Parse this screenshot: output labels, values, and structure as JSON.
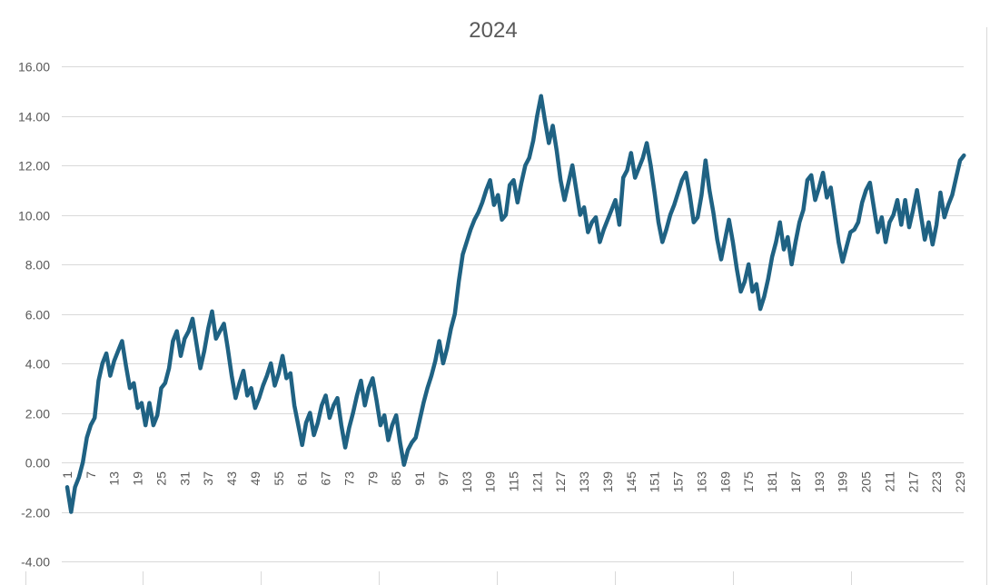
{
  "chart_data": {
    "type": "line",
    "title": "2024",
    "xlabel": "",
    "ylabel": "",
    "ylim": [
      -4,
      16
    ],
    "ytick_step": 2,
    "ytick_labels": [
      "-4.00",
      "-2.00",
      "0.00",
      "2.00",
      "4.00",
      "6.00",
      "8.00",
      "10.00",
      "12.00",
      "14.00",
      "16.00"
    ],
    "x_tick_labels": [
      "1",
      "7",
      "13",
      "19",
      "25",
      "31",
      "37",
      "43",
      "49",
      "55",
      "61",
      "67",
      "73",
      "79",
      "85",
      "91",
      "97",
      "103",
      "109",
      "115",
      "121",
      "127",
      "133",
      "139",
      "145",
      "151",
      "157",
      "163",
      "169",
      "175",
      "181",
      "187",
      "193",
      "199",
      "205",
      "211",
      "217",
      "223",
      "229"
    ],
    "x_tick_values": [
      1,
      7,
      13,
      19,
      25,
      31,
      37,
      43,
      49,
      55,
      61,
      67,
      73,
      79,
      85,
      91,
      97,
      103,
      109,
      115,
      121,
      127,
      133,
      139,
      145,
      151,
      157,
      163,
      169,
      175,
      181,
      187,
      193,
      199,
      205,
      211,
      217,
      223,
      229
    ],
    "x_range": [
      1,
      229
    ],
    "grid": true,
    "legend": "none",
    "series": [
      {
        "color": "#1f6283",
        "points": [
          [
            1,
            -1.0
          ],
          [
            2,
            -2.0
          ],
          [
            3,
            -1.0
          ],
          [
            4,
            -0.6
          ],
          [
            5,
            0.0
          ],
          [
            6,
            1.0
          ],
          [
            7,
            1.5
          ],
          [
            8,
            1.8
          ],
          [
            9,
            3.3
          ],
          [
            10,
            4.0
          ],
          [
            11,
            4.4
          ],
          [
            12,
            3.5
          ],
          [
            13,
            4.1
          ],
          [
            14,
            4.5
          ],
          [
            15,
            4.9
          ],
          [
            16,
            3.9
          ],
          [
            17,
            3.0
          ],
          [
            18,
            3.2
          ],
          [
            19,
            2.2
          ],
          [
            20,
            2.4
          ],
          [
            21,
            1.5
          ],
          [
            22,
            2.4
          ],
          [
            23,
            1.5
          ],
          [
            24,
            1.9
          ],
          [
            25,
            3.0
          ],
          [
            26,
            3.2
          ],
          [
            27,
            3.8
          ],
          [
            28,
            4.9
          ],
          [
            29,
            5.3
          ],
          [
            30,
            4.3
          ],
          [
            31,
            5.0
          ],
          [
            32,
            5.3
          ],
          [
            33,
            5.8
          ],
          [
            34,
            4.8
          ],
          [
            35,
            3.8
          ],
          [
            36,
            4.5
          ],
          [
            37,
            5.4
          ],
          [
            38,
            6.1
          ],
          [
            39,
            5.0
          ],
          [
            40,
            5.3
          ],
          [
            41,
            5.6
          ],
          [
            42,
            4.6
          ],
          [
            43,
            3.5
          ],
          [
            44,
            2.6
          ],
          [
            45,
            3.2
          ],
          [
            46,
            3.7
          ],
          [
            47,
            2.7
          ],
          [
            48,
            3.0
          ],
          [
            49,
            2.2
          ],
          [
            50,
            2.6
          ],
          [
            51,
            3.1
          ],
          [
            52,
            3.5
          ],
          [
            53,
            4.0
          ],
          [
            54,
            3.1
          ],
          [
            55,
            3.6
          ],
          [
            56,
            4.3
          ],
          [
            57,
            3.4
          ],
          [
            58,
            3.6
          ],
          [
            59,
            2.3
          ],
          [
            60,
            1.5
          ],
          [
            61,
            0.7
          ],
          [
            62,
            1.6
          ],
          [
            63,
            2.0
          ],
          [
            64,
            1.1
          ],
          [
            65,
            1.6
          ],
          [
            66,
            2.3
          ],
          [
            67,
            2.7
          ],
          [
            68,
            1.8
          ],
          [
            69,
            2.3
          ],
          [
            70,
            2.6
          ],
          [
            71,
            1.5
          ],
          [
            72,
            0.6
          ],
          [
            73,
            1.4
          ],
          [
            74,
            2.0
          ],
          [
            75,
            2.7
          ],
          [
            76,
            3.3
          ],
          [
            77,
            2.3
          ],
          [
            78,
            3.0
          ],
          [
            79,
            3.4
          ],
          [
            80,
            2.5
          ],
          [
            81,
            1.5
          ],
          [
            82,
            1.9
          ],
          [
            83,
            0.9
          ],
          [
            84,
            1.5
          ],
          [
            85,
            1.9
          ],
          [
            86,
            0.8
          ],
          [
            87,
            -0.1
          ],
          [
            88,
            0.5
          ],
          [
            89,
            0.8
          ],
          [
            90,
            1.0
          ],
          [
            91,
            1.7
          ],
          [
            92,
            2.4
          ],
          [
            93,
            3.0
          ],
          [
            94,
            3.5
          ],
          [
            95,
            4.1
          ],
          [
            96,
            4.9
          ],
          [
            97,
            4.0
          ],
          [
            98,
            4.6
          ],
          [
            99,
            5.4
          ],
          [
            100,
            6.0
          ],
          [
            101,
            7.3
          ],
          [
            102,
            8.4
          ],
          [
            103,
            8.9
          ],
          [
            104,
            9.4
          ],
          [
            105,
            9.8
          ],
          [
            106,
            10.1
          ],
          [
            107,
            10.5
          ],
          [
            108,
            11.0
          ],
          [
            109,
            11.4
          ],
          [
            110,
            10.4
          ],
          [
            111,
            10.8
          ],
          [
            112,
            9.8
          ],
          [
            113,
            10.0
          ],
          [
            114,
            11.2
          ],
          [
            115,
            11.4
          ],
          [
            116,
            10.5
          ],
          [
            117,
            11.3
          ],
          [
            118,
            12.0
          ],
          [
            119,
            12.3
          ],
          [
            120,
            13.0
          ],
          [
            121,
            14.0
          ],
          [
            122,
            14.8
          ],
          [
            123,
            13.8
          ],
          [
            124,
            12.9
          ],
          [
            125,
            13.6
          ],
          [
            126,
            12.6
          ],
          [
            127,
            11.4
          ],
          [
            128,
            10.6
          ],
          [
            129,
            11.3
          ],
          [
            130,
            12.0
          ],
          [
            131,
            11.0
          ],
          [
            132,
            10.0
          ],
          [
            133,
            10.3
          ],
          [
            134,
            9.3
          ],
          [
            135,
            9.7
          ],
          [
            136,
            9.9
          ],
          [
            137,
            8.9
          ],
          [
            138,
            9.4
          ],
          [
            139,
            9.8
          ],
          [
            140,
            10.2
          ],
          [
            141,
            10.6
          ],
          [
            142,
            9.6
          ],
          [
            143,
            11.5
          ],
          [
            144,
            11.8
          ],
          [
            145,
            12.5
          ],
          [
            146,
            11.5
          ],
          [
            147,
            11.9
          ],
          [
            148,
            12.3
          ],
          [
            149,
            12.9
          ],
          [
            150,
            12.0
          ],
          [
            151,
            10.9
          ],
          [
            152,
            9.7
          ],
          [
            153,
            8.9
          ],
          [
            154,
            9.4
          ],
          [
            155,
            10.0
          ],
          [
            156,
            10.4
          ],
          [
            157,
            10.9
          ],
          [
            158,
            11.4
          ],
          [
            159,
            11.7
          ],
          [
            160,
            10.8
          ],
          [
            161,
            9.7
          ],
          [
            162,
            9.9
          ],
          [
            163,
            10.8
          ],
          [
            164,
            12.2
          ],
          [
            165,
            11.0
          ],
          [
            166,
            10.1
          ],
          [
            167,
            9.0
          ],
          [
            168,
            8.2
          ],
          [
            169,
            9.0
          ],
          [
            170,
            9.8
          ],
          [
            171,
            8.9
          ],
          [
            172,
            7.8
          ],
          [
            173,
            6.9
          ],
          [
            174,
            7.3
          ],
          [
            175,
            8.0
          ],
          [
            176,
            6.9
          ],
          [
            177,
            7.2
          ],
          [
            178,
            6.2
          ],
          [
            179,
            6.7
          ],
          [
            180,
            7.4
          ],
          [
            181,
            8.3
          ],
          [
            182,
            8.9
          ],
          [
            183,
            9.7
          ],
          [
            184,
            8.6
          ],
          [
            185,
            9.1
          ],
          [
            186,
            8.0
          ],
          [
            187,
            8.9
          ],
          [
            188,
            9.7
          ],
          [
            189,
            10.2
          ],
          [
            190,
            11.4
          ],
          [
            191,
            11.6
          ],
          [
            192,
            10.6
          ],
          [
            193,
            11.1
          ],
          [
            194,
            11.7
          ],
          [
            195,
            10.7
          ],
          [
            196,
            11.1
          ],
          [
            197,
            10.0
          ],
          [
            198,
            8.9
          ],
          [
            199,
            8.1
          ],
          [
            200,
            8.7
          ],
          [
            201,
            9.3
          ],
          [
            202,
            9.4
          ],
          [
            203,
            9.7
          ],
          [
            204,
            10.5
          ],
          [
            205,
            11.0
          ],
          [
            206,
            11.3
          ],
          [
            207,
            10.3
          ],
          [
            208,
            9.3
          ],
          [
            209,
            9.9
          ],
          [
            210,
            8.9
          ],
          [
            211,
            9.7
          ],
          [
            212,
            10.0
          ],
          [
            213,
            10.6
          ],
          [
            214,
            9.6
          ],
          [
            215,
            10.6
          ],
          [
            216,
            9.5
          ],
          [
            217,
            10.2
          ],
          [
            218,
            11.0
          ],
          [
            219,
            10.0
          ],
          [
            220,
            9.0
          ],
          [
            221,
            9.7
          ],
          [
            222,
            8.8
          ],
          [
            223,
            9.6
          ],
          [
            224,
            10.9
          ],
          [
            225,
            9.9
          ],
          [
            226,
            10.4
          ],
          [
            227,
            10.8
          ],
          [
            228,
            11.5
          ],
          [
            229,
            12.2
          ],
          [
            230,
            12.4
          ]
        ]
      }
    ]
  }
}
